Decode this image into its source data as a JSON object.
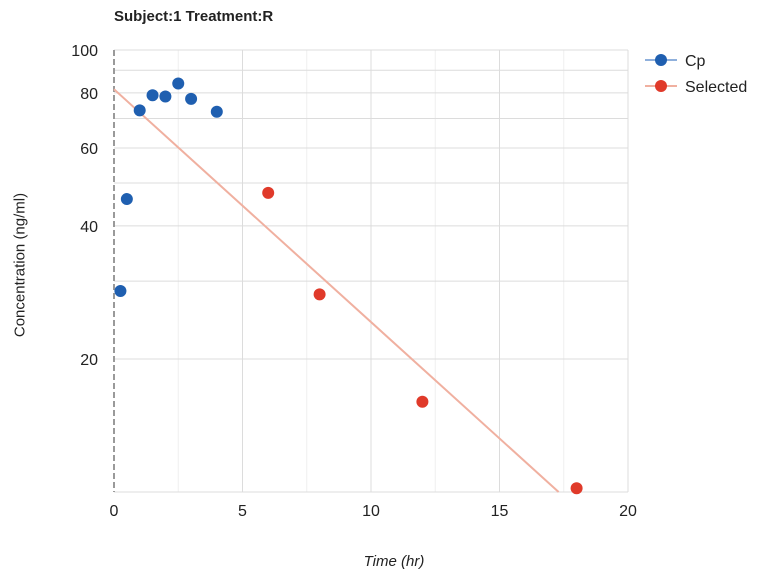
{
  "chart_data": {
    "type": "scatter",
    "title": "Subject:1 Treatment:R",
    "xlabel": "Time (hr)",
    "ylabel": "Concentration (ng/ml)",
    "xlim": [
      0,
      20
    ],
    "ylim": [
      10,
      100
    ],
    "yscale": "log",
    "grid": true,
    "legend_position": "top-right",
    "x_ticks": [
      0,
      5,
      10,
      15,
      20
    ],
    "y_ticks": [
      20,
      40,
      60,
      80,
      100
    ],
    "series": [
      {
        "name": "Cp",
        "color": "#1f5fb0",
        "marker": "circle",
        "x": [
          0.25,
          0.5,
          1,
          1.5,
          2,
          2.5,
          3,
          4
        ],
        "y": [
          28.5,
          46,
          73,
          79,
          78.5,
          84,
          77.5,
          72.5
        ]
      },
      {
        "name": "Selected",
        "color": "#e03a2a",
        "marker": "circle",
        "x": [
          6,
          8,
          12,
          18
        ],
        "y": [
          47.5,
          28,
          16,
          10.2
        ]
      }
    ],
    "fit_line": {
      "color": "#f0b0a0",
      "x": [
        0,
        17.3
      ],
      "y": [
        81.5,
        10
      ]
    }
  }
}
